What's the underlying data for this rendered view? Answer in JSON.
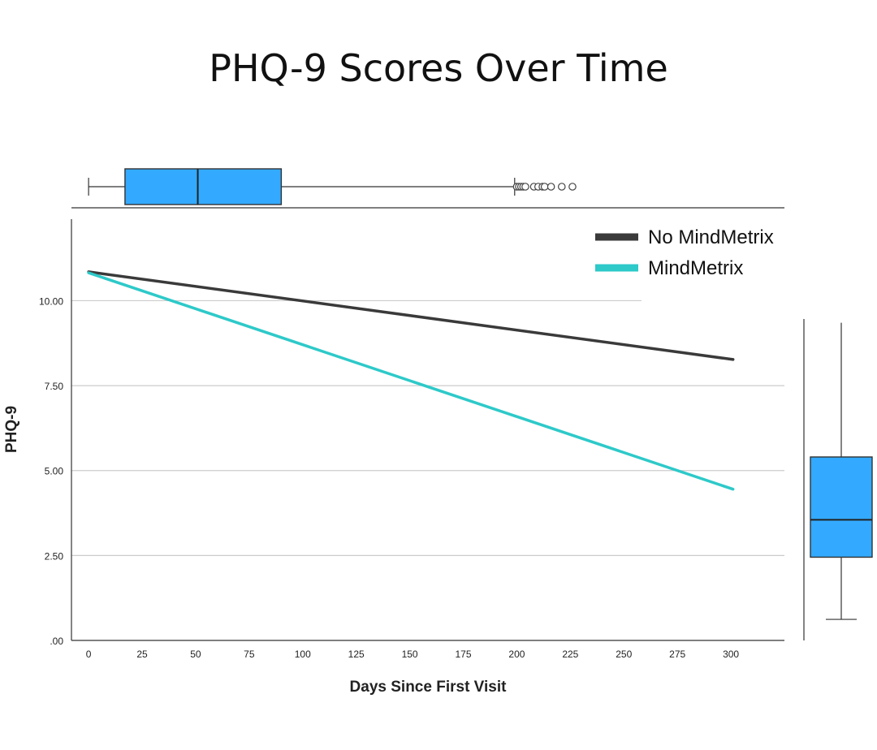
{
  "chart_data": {
    "type": "line",
    "title": "PHQ-9 Scores Over Time",
    "xlabel": "Days Since First Visit",
    "ylabel": "PHQ-9",
    "x_ticks": [
      "0",
      "25",
      "50",
      "75",
      "100",
      "125",
      "150",
      "175",
      "200",
      "225",
      "250",
      "275",
      "300"
    ],
    "y_ticks": [
      ".00",
      "2.50",
      "5.00",
      "7.50",
      "10.00"
    ],
    "xlim": [
      -8,
      325
    ],
    "ylim": [
      0,
      12.4
    ],
    "grid": "horizontal",
    "legend_position": "top-right",
    "series": [
      {
        "name": "No MindMetrix",
        "color": "#3a3a3a",
        "x": [
          0,
          301
        ],
        "y": [
          10.85,
          8.27
        ]
      },
      {
        "name": "MindMetrix",
        "color": "#2ec9c9",
        "x": [
          0,
          301
        ],
        "y": [
          10.82,
          4.45
        ]
      }
    ],
    "x_marginal_boxplot": {
      "whisker_low": 0,
      "q1": 17,
      "median": 51,
      "q3": 90,
      "whisker_high": 199,
      "outliers": [
        200,
        201,
        202,
        203,
        204,
        208,
        210,
        212,
        213,
        216,
        221,
        226
      ],
      "color": "#33aaff"
    },
    "y_marginal_boxplot": {
      "whisker_low": 0.62,
      "q1": 2.45,
      "median": 3.55,
      "q3": 5.4,
      "whisker_high": 9.35,
      "color": "#33aaff"
    }
  }
}
